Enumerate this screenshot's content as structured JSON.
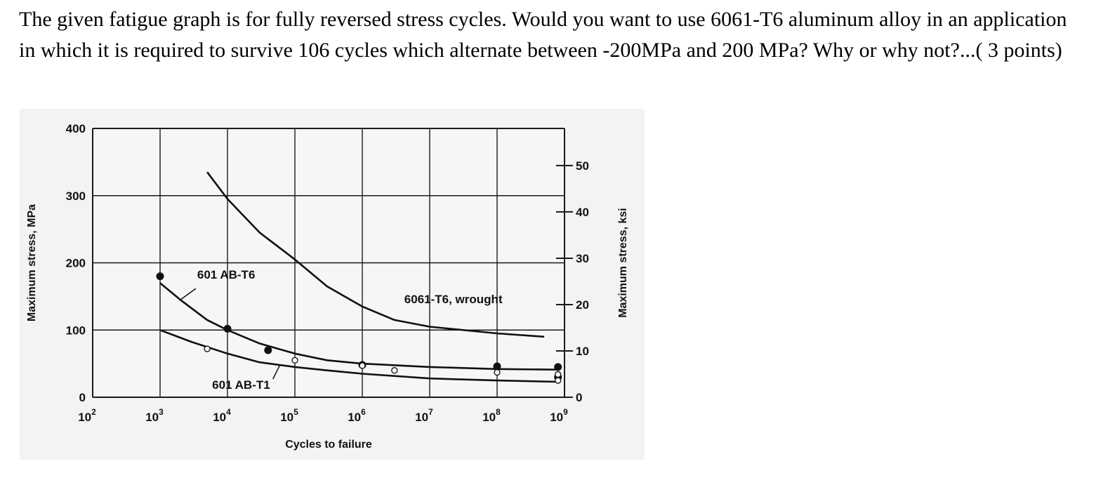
{
  "question": {
    "text": "The given fatigue graph is for fully reversed stress cycles. Would you want to use 6061-T6 aluminum alloy in an application in which it is required to survive 106 cycles which alternate between -200MPa and 200 MPa? Why or why not?...( 3 points)"
  },
  "chart_data": {
    "type": "line",
    "title": "",
    "xlabel": "Cycles to failure",
    "ylabel": "Maximum stress, MPa",
    "ylabel_right": "Maximum stress, ksi",
    "x_scale": "log",
    "xlim": [
      100,
      1000000000
    ],
    "ylim": [
      0,
      400
    ],
    "x_ticks": [
      {
        "base": "10",
        "exp": "2",
        "value": 100
      },
      {
        "base": "10",
        "exp": "3",
        "value": 1000
      },
      {
        "base": "10",
        "exp": "4",
        "value": 10000
      },
      {
        "base": "10",
        "exp": "5",
        "value": 100000
      },
      {
        "base": "10",
        "exp": "6",
        "value": 1000000
      },
      {
        "base": "10",
        "exp": "7",
        "value": 10000000
      },
      {
        "base": "10",
        "exp": "8",
        "value": 100000000
      },
      {
        "base": "10",
        "exp": "9",
        "value": 1000000000
      }
    ],
    "y_ticks": [
      "0",
      "100",
      "200",
      "300",
      "400"
    ],
    "y_ticks_right": [
      "0",
      "10",
      "20",
      "30",
      "40",
      "50"
    ],
    "ksi_to_mpa": 6.895,
    "grid": true,
    "series": [
      {
        "name": "6061-T6, wrought",
        "x": [
          5000,
          10000,
          30000,
          100000,
          300000,
          1000000,
          3000000,
          10000000,
          100000000,
          500000000
        ],
        "y": [
          335,
          295,
          245,
          205,
          165,
          135,
          115,
          105,
          95,
          90
        ]
      },
      {
        "name": "601 AB-T6",
        "x": [
          1000,
          2000,
          5000,
          10000,
          30000,
          100000,
          300000,
          1000000,
          10000000,
          100000000,
          800000000
        ],
        "y": [
          170,
          145,
          115,
          100,
          80,
          65,
          55,
          50,
          45,
          42,
          41
        ]
      },
      {
        "name": "601 AB-T1",
        "x": [
          1000,
          3000,
          10000,
          30000,
          100000,
          300000,
          1000000,
          10000000,
          100000000,
          800000000
        ],
        "y": [
          100,
          82,
          65,
          52,
          45,
          40,
          35,
          28,
          25,
          23
        ]
      }
    ],
    "points_filled": [
      {
        "x": 1000,
        "y": 180
      },
      {
        "x": 10000,
        "y": 102
      },
      {
        "x": 40000,
        "y": 70
      },
      {
        "x": 1000000,
        "y": 48
      },
      {
        "x": 100000000,
        "y": 46
      },
      {
        "x": 800000000,
        "y": 45
      },
      {
        "x": 800000000,
        "y": 30
      }
    ],
    "points_open": [
      {
        "x": 5000,
        "y": 72
      },
      {
        "x": 100000,
        "y": 55
      },
      {
        "x": 1000000,
        "y": 47
      },
      {
        "x": 3000000,
        "y": 40
      },
      {
        "x": 100000000,
        "y": 37
      },
      {
        "x": 800000000,
        "y": 34
      },
      {
        "x": 800000000,
        "y": 25
      }
    ],
    "annotations": [
      {
        "text": "6061-T6, wrought",
        "series": 0,
        "x": 3000000,
        "y": 155
      },
      {
        "text": "601 AB-T6",
        "series": 1,
        "x": 2000,
        "y": 160
      },
      {
        "text": "601 AB-T1",
        "series": 2,
        "x": 60000,
        "y": 35
      }
    ]
  }
}
